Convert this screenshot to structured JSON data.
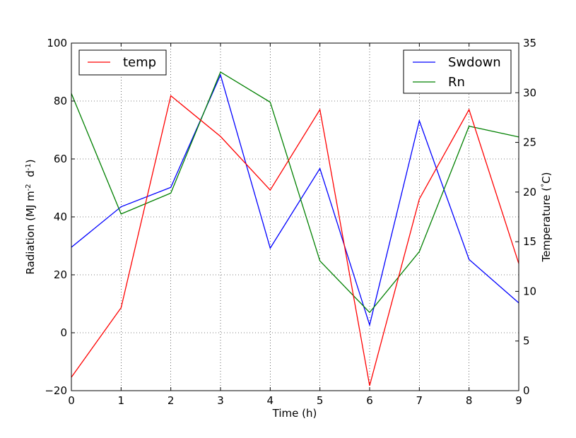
{
  "chart_data": {
    "type": "line",
    "x": [
      0,
      1,
      2,
      3,
      4,
      5,
      6,
      7,
      8,
      9
    ],
    "xlabel": "Time (h)",
    "ylabel_left": "Radiation (MJ m",
    "ylabel_left_exp1": "-2",
    "ylabel_left_mid": "  d",
    "ylabel_left_exp2": "-1",
    "ylabel_left_end": ")",
    "ylabel_right": "Temperature (",
    "ylabel_right_deg": "°",
    "ylabel_right_end": "C)",
    "xlim": [
      0,
      9
    ],
    "ylim_left": [
      -20,
      100
    ],
    "ylim_right": [
      0,
      35
    ],
    "xticks": [
      "0",
      "1",
      "2",
      "3",
      "4",
      "5",
      "6",
      "7",
      "8",
      "9"
    ],
    "yticks_left": [
      "−20",
      "0",
      "20",
      "40",
      "60",
      "80",
      "100"
    ],
    "yticks_left_values": [
      -20,
      0,
      20,
      40,
      60,
      80,
      100
    ],
    "yticks_right": [
      "0",
      "5",
      "10",
      "15",
      "20",
      "25",
      "30",
      "35"
    ],
    "yticks_right_values": [
      0,
      5,
      10,
      15,
      20,
      25,
      30,
      35
    ],
    "grid": true,
    "series": [
      {
        "name": "Swdown",
        "axis": "left",
        "color": "#0000ff",
        "values": [
          29.5,
          43.5,
          50.2,
          89.0,
          29.2,
          56.7,
          2.7,
          73.2,
          25.3,
          10.3
        ]
      },
      {
        "name": "Rn",
        "axis": "left",
        "color": "#008000",
        "values": [
          82.6,
          41.0,
          48.2,
          90.0,
          79.6,
          24.8,
          7.0,
          28.0,
          71.3,
          67.6
        ]
      },
      {
        "name": "temp",
        "axis": "right",
        "color": "#ff0000",
        "values": [
          1.35,
          8.35,
          29.7,
          25.6,
          20.2,
          28.3,
          0.5,
          19.3,
          28.3,
          12.8
        ]
      }
    ],
    "legend_left": {
      "position": "upper-left",
      "entries": [
        "temp"
      ]
    },
    "legend_right": {
      "position": "upper-right",
      "entries": [
        "Swdown",
        "Rn"
      ]
    }
  }
}
